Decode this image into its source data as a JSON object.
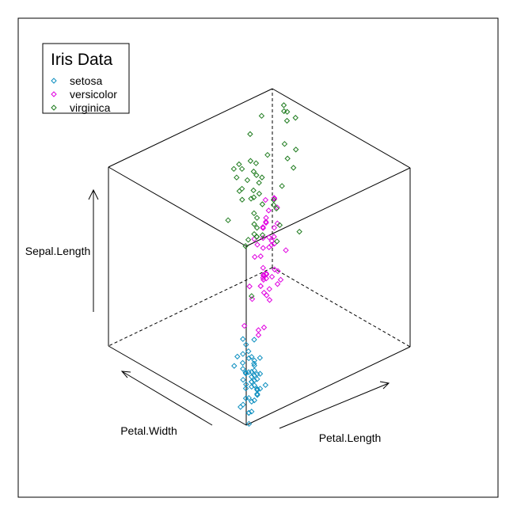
{
  "chart_data": {
    "type": "scatter",
    "projection": "3d-cube",
    "axes": {
      "x": {
        "label": "Petal.Width",
        "range": [
          0.1,
          2.5
        ]
      },
      "y": {
        "label": "Petal.Length",
        "range": [
          1.0,
          6.9
        ]
      },
      "z": {
        "label": "Sepal.Length",
        "range": [
          4.3,
          7.9
        ]
      }
    },
    "legend": {
      "title": "Iris Data",
      "position": "top-left",
      "entries": [
        "setosa",
        "versicolor",
        "virginica"
      ]
    },
    "series": [
      {
        "name": "setosa",
        "color": "#0d8fc0",
        "points": [
          [
            0.2,
            1.4,
            5.1
          ],
          [
            0.2,
            1.4,
            4.9
          ],
          [
            0.2,
            1.3,
            4.7
          ],
          [
            0.2,
            1.5,
            4.6
          ],
          [
            0.2,
            1.4,
            5.0
          ],
          [
            0.4,
            1.7,
            5.4
          ],
          [
            0.3,
            1.4,
            4.6
          ],
          [
            0.2,
            1.5,
            5.0
          ],
          [
            0.2,
            1.4,
            4.4
          ],
          [
            0.1,
            1.5,
            4.9
          ],
          [
            0.2,
            1.5,
            5.4
          ],
          [
            0.2,
            1.6,
            4.8
          ],
          [
            0.1,
            1.4,
            4.8
          ],
          [
            0.1,
            1.1,
            4.3
          ],
          [
            0.2,
            1.2,
            5.8
          ],
          [
            0.4,
            1.5,
            5.7
          ],
          [
            0.4,
            1.3,
            5.4
          ],
          [
            0.3,
            1.4,
            5.1
          ],
          [
            0.3,
            1.7,
            5.7
          ],
          [
            0.3,
            1.5,
            5.1
          ],
          [
            0.2,
            1.7,
            5.4
          ],
          [
            0.4,
            1.5,
            5.1
          ],
          [
            0.2,
            1.0,
            4.6
          ],
          [
            0.5,
            1.7,
            5.1
          ],
          [
            0.2,
            1.9,
            4.8
          ],
          [
            0.2,
            1.6,
            5.0
          ],
          [
            0.4,
            1.6,
            5.0
          ],
          [
            0.2,
            1.5,
            5.2
          ],
          [
            0.2,
            1.4,
            5.2
          ],
          [
            0.2,
            1.6,
            4.7
          ],
          [
            0.2,
            1.6,
            4.8
          ],
          [
            0.4,
            1.5,
            5.4
          ],
          [
            0.1,
            1.5,
            5.2
          ],
          [
            0.2,
            1.4,
            5.5
          ],
          [
            0.2,
            1.5,
            4.9
          ],
          [
            0.2,
            1.2,
            5.0
          ],
          [
            0.2,
            1.3,
            5.5
          ],
          [
            0.1,
            1.4,
            4.9
          ],
          [
            0.2,
            1.3,
            4.4
          ],
          [
            0.2,
            1.5,
            5.1
          ],
          [
            0.3,
            1.3,
            5.0
          ],
          [
            0.3,
            1.3,
            4.5
          ],
          [
            0.2,
            1.3,
            4.4
          ],
          [
            0.6,
            1.6,
            5.0
          ],
          [
            0.4,
            1.9,
            5.1
          ],
          [
            0.3,
            1.4,
            4.8
          ],
          [
            0.2,
            1.6,
            5.1
          ],
          [
            0.2,
            1.4,
            4.6
          ],
          [
            0.2,
            1.5,
            5.3
          ],
          [
            0.2,
            1.4,
            5.0
          ]
        ]
      },
      {
        "name": "versicolor",
        "color": "#e000e0",
        "points": [
          [
            1.4,
            4.7,
            7.0
          ],
          [
            1.5,
            4.5,
            6.4
          ],
          [
            1.5,
            4.9,
            6.9
          ],
          [
            1.3,
            4.0,
            5.5
          ],
          [
            1.5,
            4.6,
            6.5
          ],
          [
            1.3,
            4.5,
            5.7
          ],
          [
            1.6,
            4.7,
            6.3
          ],
          [
            1.0,
            3.3,
            4.9
          ],
          [
            1.3,
            4.6,
            6.6
          ],
          [
            1.4,
            3.9,
            5.2
          ],
          [
            1.0,
            3.5,
            5.0
          ],
          [
            1.5,
            4.2,
            5.9
          ],
          [
            1.0,
            4.0,
            6.0
          ],
          [
            1.4,
            4.7,
            6.1
          ],
          [
            1.3,
            3.6,
            5.6
          ],
          [
            1.4,
            4.4,
            6.7
          ],
          [
            1.5,
            4.5,
            5.6
          ],
          [
            1.0,
            4.1,
            5.8
          ],
          [
            1.5,
            4.5,
            6.2
          ],
          [
            1.1,
            3.9,
            5.6
          ],
          [
            1.8,
            4.8,
            5.9
          ],
          [
            1.3,
            4.0,
            6.1
          ],
          [
            1.5,
            4.9,
            6.3
          ],
          [
            1.2,
            4.7,
            6.1
          ],
          [
            1.3,
            4.3,
            6.4
          ],
          [
            1.4,
            4.4,
            6.6
          ],
          [
            1.4,
            4.8,
            6.8
          ],
          [
            1.7,
            5.0,
            6.7
          ],
          [
            1.5,
            4.5,
            6.0
          ],
          [
            1.0,
            3.5,
            5.7
          ],
          [
            1.1,
            3.8,
            5.5
          ],
          [
            1.0,
            3.7,
            5.5
          ],
          [
            1.2,
            3.9,
            5.8
          ],
          [
            1.6,
            5.1,
            6.0
          ],
          [
            1.5,
            4.5,
            5.4
          ],
          [
            1.6,
            4.5,
            6.0
          ],
          [
            1.5,
            4.7,
            6.7
          ],
          [
            1.3,
            4.4,
            6.3
          ],
          [
            1.3,
            4.1,
            5.6
          ],
          [
            1.3,
            4.0,
            5.5
          ],
          [
            1.2,
            4.4,
            5.5
          ],
          [
            1.4,
            4.6,
            6.1
          ],
          [
            1.2,
            4.0,
            5.8
          ],
          [
            1.0,
            3.3,
            5.0
          ],
          [
            1.3,
            4.2,
            5.6
          ],
          [
            1.2,
            4.2,
            5.7
          ],
          [
            1.3,
            4.2,
            5.7
          ],
          [
            1.3,
            4.3,
            6.2
          ],
          [
            1.1,
            3.0,
            5.1
          ],
          [
            1.3,
            4.1,
            5.7
          ]
        ]
      },
      {
        "name": "virginica",
        "color": "#1e7b1e",
        "points": [
          [
            2.5,
            6.0,
            6.3
          ],
          [
            1.9,
            5.1,
            5.8
          ],
          [
            2.1,
            5.9,
            7.1
          ],
          [
            1.8,
            5.6,
            6.3
          ],
          [
            2.2,
            5.8,
            6.5
          ],
          [
            2.1,
            6.6,
            7.6
          ],
          [
            1.7,
            4.5,
            4.9
          ],
          [
            1.8,
            6.3,
            7.3
          ],
          [
            1.8,
            5.8,
            6.7
          ],
          [
            2.5,
            6.1,
            7.2
          ],
          [
            2.0,
            5.1,
            6.5
          ],
          [
            1.9,
            5.3,
            6.4
          ],
          [
            2.1,
            5.5,
            6.8
          ],
          [
            2.0,
            5.0,
            5.7
          ],
          [
            2.4,
            5.1,
            5.8
          ],
          [
            2.3,
            5.3,
            6.4
          ],
          [
            1.8,
            5.5,
            6.5
          ],
          [
            2.2,
            6.7,
            7.7
          ],
          [
            2.3,
            6.9,
            7.7
          ],
          [
            1.5,
            5.0,
            6.0
          ],
          [
            2.3,
            5.7,
            6.9
          ],
          [
            2.0,
            4.9,
            5.6
          ],
          [
            2.0,
            6.7,
            7.7
          ],
          [
            1.8,
            4.9,
            6.3
          ],
          [
            2.1,
            5.7,
            6.7
          ],
          [
            1.8,
            6.0,
            7.2
          ],
          [
            1.8,
            4.8,
            6.2
          ],
          [
            1.8,
            4.9,
            6.1
          ],
          [
            2.1,
            5.6,
            6.4
          ],
          [
            1.6,
            5.8,
            7.2
          ],
          [
            1.9,
            6.1,
            7.4
          ],
          [
            2.0,
            6.4,
            7.9
          ],
          [
            2.2,
            5.6,
            6.4
          ],
          [
            1.5,
            5.1,
            6.3
          ],
          [
            1.4,
            5.6,
            6.1
          ],
          [
            2.3,
            6.1,
            7.7
          ],
          [
            2.4,
            5.6,
            6.3
          ],
          [
            1.8,
            5.5,
            6.4
          ],
          [
            1.8,
            4.8,
            6.0
          ],
          [
            2.1,
            5.4,
            6.9
          ],
          [
            2.4,
            5.6,
            6.7
          ],
          [
            2.3,
            5.1,
            6.9
          ],
          [
            1.9,
            5.1,
            5.8
          ],
          [
            2.3,
            5.9,
            6.8
          ],
          [
            2.5,
            5.7,
            6.7
          ],
          [
            2.3,
            5.2,
            6.7
          ],
          [
            1.9,
            5.0,
            6.3
          ],
          [
            2.0,
            5.2,
            6.5
          ],
          [
            2.3,
            5.4,
            6.2
          ],
          [
            1.8,
            5.1,
            5.9
          ]
        ]
      }
    ]
  }
}
